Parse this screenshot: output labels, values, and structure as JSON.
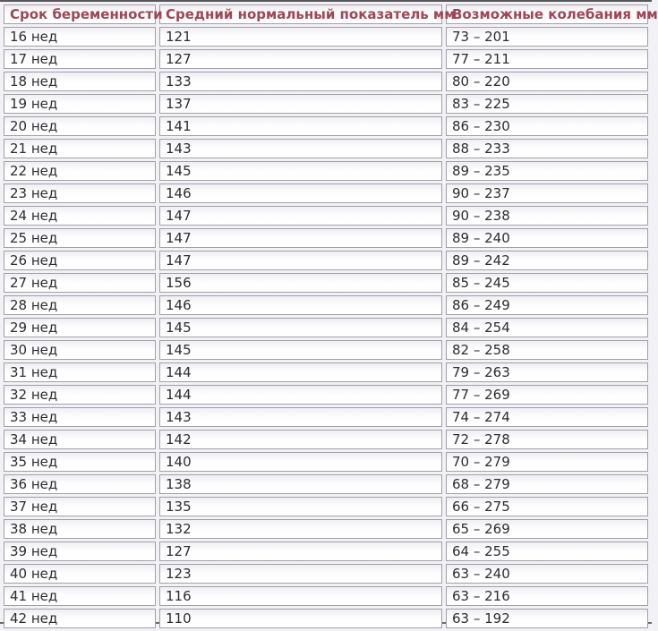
{
  "table": {
    "columns": [
      "Срок беременности",
      "Средний нормальный показатель мм",
      "Возможные колебания мм"
    ],
    "rows": [
      {
        "term": "16 нед",
        "avg": "121",
        "range": "73 – 201"
      },
      {
        "term": "17 нед",
        "avg": "127",
        "range": "77 – 211"
      },
      {
        "term": "18 нед",
        "avg": "133",
        "range": "80 – 220"
      },
      {
        "term": "19 нед",
        "avg": "137",
        "range": "83 – 225"
      },
      {
        "term": "20 нед",
        "avg": "141",
        "range": "86 – 230"
      },
      {
        "term": "21 нед",
        "avg": "143",
        "range": "88 – 233"
      },
      {
        "term": "22 нед",
        "avg": "145",
        "range": "89 – 235"
      },
      {
        "term": "23 нед",
        "avg": "146",
        "range": "90 – 237"
      },
      {
        "term": "24 нед",
        "avg": "147",
        "range": "90 – 238"
      },
      {
        "term": "25 нед",
        "avg": "147",
        "range": "89 – 240"
      },
      {
        "term": "26 нед",
        "avg": "147",
        "range": "89 – 242"
      },
      {
        "term": "27 нед",
        "avg": "156",
        "range": "85 – 245"
      },
      {
        "term": "28 нед",
        "avg": "146",
        "range": "86 – 249"
      },
      {
        "term": "29 нед",
        "avg": "145",
        "range": "84 – 254"
      },
      {
        "term": "30 нед",
        "avg": "145",
        "range": "82 – 258"
      },
      {
        "term": "31 нед",
        "avg": "144",
        "range": "79 – 263"
      },
      {
        "term": "32 нед",
        "avg": "144",
        "range": "77 – 269"
      },
      {
        "term": "33 нед",
        "avg": "143",
        "range": "74 – 274"
      },
      {
        "term": "34 нед",
        "avg": "142",
        "range": "72 – 278"
      },
      {
        "term": "35 нед",
        "avg": "140",
        "range": "70 – 279"
      },
      {
        "term": "36 нед",
        "avg": "138",
        "range": "68 – 279"
      },
      {
        "term": "37 нед",
        "avg": "135",
        "range": "66 – 275"
      },
      {
        "term": "38 нед",
        "avg": "132",
        "range": "65 – 269"
      },
      {
        "term": "39 нед",
        "avg": "127",
        "range": "64 – 255"
      },
      {
        "term": "40 нед",
        "avg": "123",
        "range": "63 – 240"
      },
      {
        "term": "41 нед",
        "avg": "116",
        "range": "63 – 216"
      },
      {
        "term": "42 нед",
        "avg": "110",
        "range": "63 – 192"
      }
    ]
  },
  "colors": {
    "header_text": "#9b4756",
    "cell_border": "#a0a0a6",
    "page_background": "#f2f1f5",
    "body_text": "#2d2d30",
    "top_rule": "#57575a"
  }
}
